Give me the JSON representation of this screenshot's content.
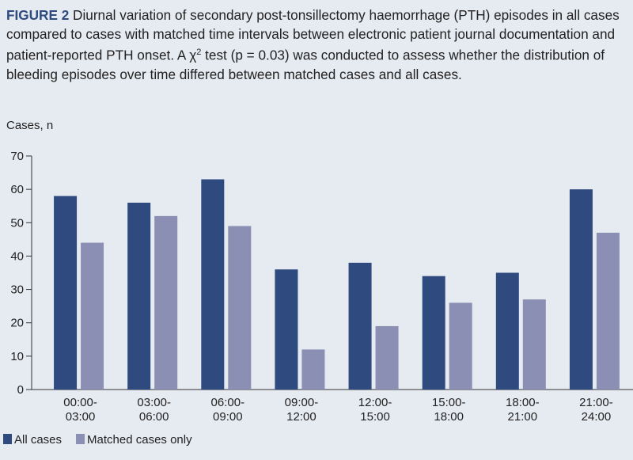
{
  "caption": {
    "label": "FIGURE 2",
    "text_before": " Diurnal variation of secondary post-tonsillectomy haemorrhage (PTH) episodes in all cases compared to cases with matched time intervals between electronic patient journal documentation and patient-reported PTH onset. A χ",
    "superscript": "2",
    "text_after": " test (p = 0.03) was conducted to assess whether the distribution of bleeding episodes over time differed between matched cases and all cases."
  },
  "chart_data": {
    "type": "bar",
    "title": "",
    "ylabel": "Cases, n",
    "xlabel": "",
    "ylim": [
      0,
      70
    ],
    "yticks": [
      0,
      10,
      20,
      30,
      40,
      50,
      60,
      70
    ],
    "categories": [
      [
        "00:00-",
        "03:00"
      ],
      [
        "03:00-",
        "06:00"
      ],
      [
        "06:00-",
        "09:00"
      ],
      [
        "09:00-",
        "12:00"
      ],
      [
        "12:00-",
        "15:00"
      ],
      [
        "15:00-",
        "18:00"
      ],
      [
        "18:00-",
        "21:00"
      ],
      [
        "21:00-",
        "24:00"
      ]
    ],
    "series": [
      {
        "name": "All cases",
        "color": "#2e4a7f",
        "values": [
          58,
          56,
          63,
          36,
          38,
          34,
          35,
          60
        ]
      },
      {
        "name": "Matched cases only",
        "color": "#8a8fb3",
        "values": [
          44,
          52,
          49,
          12,
          19,
          26,
          27,
          47
        ]
      }
    ],
    "legend": "bottom-left"
  }
}
